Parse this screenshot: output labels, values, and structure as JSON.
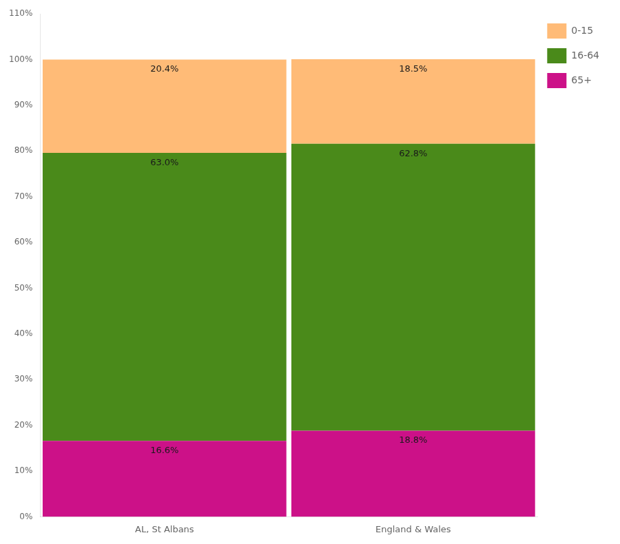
{
  "chart_data": {
    "type": "bar",
    "stacked": true,
    "categories": [
      "AL, St Albans",
      "England & Wales"
    ],
    "series": [
      {
        "name": "65+",
        "color": "#CC1188",
        "values": [
          16.6,
          18.8
        ],
        "value_labels": [
          "16.6%",
          "18.8%"
        ]
      },
      {
        "name": "16-64",
        "color": "#4A8A1A",
        "values": [
          63.0,
          62.8
        ],
        "value_labels": [
          "63.0%",
          "62.8%"
        ]
      },
      {
        "name": "0-15",
        "color": "#FFBB77",
        "values": [
          20.4,
          18.5
        ],
        "value_labels": [
          "20.4%",
          "18.5%"
        ]
      }
    ],
    "ylim": [
      0,
      110
    ],
    "yticks": [
      {
        "value": 0,
        "label": "0%"
      },
      {
        "value": 10,
        "label": "10%"
      },
      {
        "value": 20,
        "label": "20%"
      },
      {
        "value": 30,
        "label": "30%"
      },
      {
        "value": 40,
        "label": "40%"
      },
      {
        "value": 50,
        "label": "50%"
      },
      {
        "value": 60,
        "label": "60%"
      },
      {
        "value": 70,
        "label": "70%"
      },
      {
        "value": 80,
        "label": "80%"
      },
      {
        "value": 90,
        "label": "90%"
      },
      {
        "value": 100,
        "label": "100%"
      },
      {
        "value": 110,
        "label": "110%"
      }
    ],
    "grid": false,
    "legend": "right",
    "data_labels": true
  }
}
